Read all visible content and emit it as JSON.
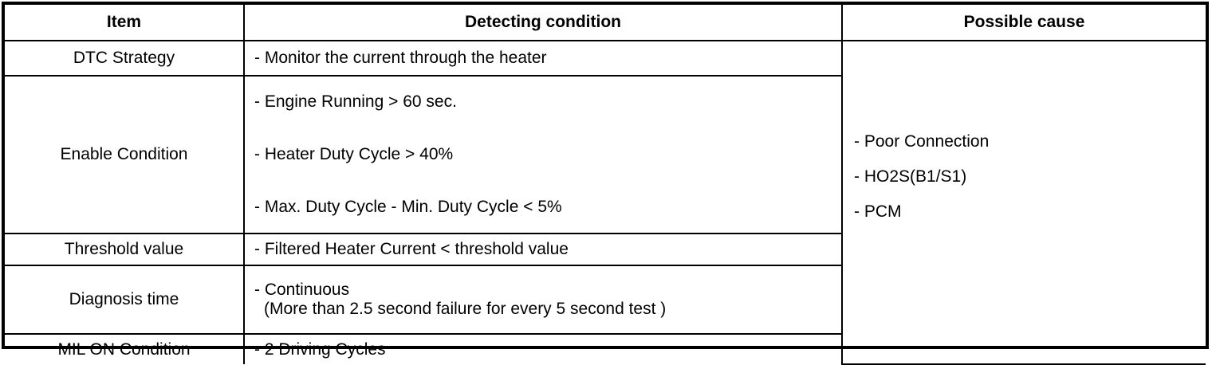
{
  "headers": {
    "item": "Item",
    "condition": "Detecting condition",
    "cause": "Possible cause"
  },
  "rows": [
    {
      "item": "DTC Strategy",
      "conditions": [
        "- Monitor the current through the heater"
      ]
    },
    {
      "item": "Enable Condition",
      "conditions": [
        "- Engine Running > 60 sec.",
        "- Heater Duty Cycle > 40%",
        "- Max. Duty Cycle - Min. Duty Cycle < 5%"
      ]
    },
    {
      "item": "Threshold value",
      "conditions": [
        "- Filtered Heater Current < threshold value"
      ]
    },
    {
      "item": "Diagnosis time",
      "conditions": [
        "- Continuous",
        "(More than 2.5 second failure for every 5 second test )"
      ]
    },
    {
      "item": "MIL ON Condition",
      "conditions": [
        "- 2 Driving Cycles"
      ]
    }
  ],
  "possible_causes": [
    "- Poor Connection",
    "- HO2S(B1/S1)",
    "- PCM"
  ]
}
